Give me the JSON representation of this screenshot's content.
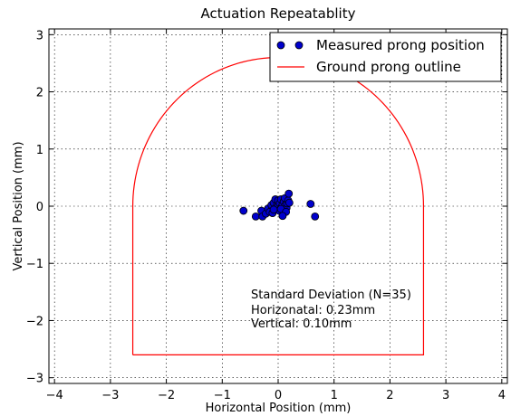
{
  "chart_data": {
    "type": "scatter",
    "title": "Actuation Repeatablity",
    "xlabel": "Horizontal Position (mm)",
    "ylabel": "Vertical Position (mm)",
    "xlim": [
      -4.1,
      4.1
    ],
    "ylim": [
      -3.1,
      3.1
    ],
    "x_ticks": [
      -4,
      -3,
      -2,
      -1,
      0,
      1,
      2,
      3,
      4
    ],
    "x_tick_labels": [
      "−4",
      "−3",
      "−2",
      "−1",
      "0",
      "1",
      "2",
      "3",
      "4"
    ],
    "y_ticks": [
      -3,
      -2,
      -1,
      0,
      1,
      2,
      3
    ],
    "y_tick_labels": [
      "−3",
      "−2",
      "−1",
      "0",
      "1",
      "2",
      "3"
    ],
    "grid": true,
    "legend_position": "top-right",
    "series": [
      {
        "name": "Measured prong position",
        "kind": "scatter",
        "color": "#0000cc",
        "edge_color": "#000000",
        "points": [
          [
            -0.62,
            -0.08
          ],
          [
            -0.4,
            -0.18
          ],
          [
            -0.3,
            -0.08
          ],
          [
            -0.28,
            -0.18
          ],
          [
            -0.22,
            -0.13
          ],
          [
            -0.18,
            -0.04
          ],
          [
            -0.15,
            -0.1
          ],
          [
            -0.12,
            0.02
          ],
          [
            -0.1,
            -0.12
          ],
          [
            -0.08,
            0.06
          ],
          [
            -0.05,
            0.12
          ],
          [
            -0.03,
            -0.04
          ],
          [
            -0.02,
            0.02
          ],
          [
            0.0,
            0.0
          ],
          [
            0.0,
            0.1
          ],
          [
            0.02,
            -0.08
          ],
          [
            0.03,
            0.05
          ],
          [
            0.05,
            0.12
          ],
          [
            0.06,
            -0.02
          ],
          [
            0.08,
            0.03
          ],
          [
            0.1,
            -0.06
          ],
          [
            0.1,
            0.08
          ],
          [
            0.12,
            0.14
          ],
          [
            0.13,
            0.02
          ],
          [
            0.15,
            -0.03
          ],
          [
            0.16,
            0.05
          ],
          [
            0.18,
            0.1
          ],
          [
            0.19,
            0.22
          ],
          [
            0.2,
            0.06
          ],
          [
            0.05,
            -0.05
          ],
          [
            0.14,
            -0.1
          ],
          [
            0.08,
            -0.17
          ],
          [
            -0.08,
            -0.06
          ],
          [
            0.58,
            0.04
          ],
          [
            0.66,
            -0.18
          ]
        ]
      },
      {
        "name": "Ground prong outline",
        "kind": "outline",
        "color": "#ff0000",
        "arch_radius": 2.6,
        "arch_center": [
          0,
          0
        ],
        "bottom": -2.6
      }
    ],
    "annotation": {
      "lines": [
        "Standard Deviation (N=35)",
        "Horizonatal: 0.23mm",
        "Vertical: 0.10mm"
      ],
      "anchor": [
        -0.5,
        -1.6
      ]
    }
  }
}
